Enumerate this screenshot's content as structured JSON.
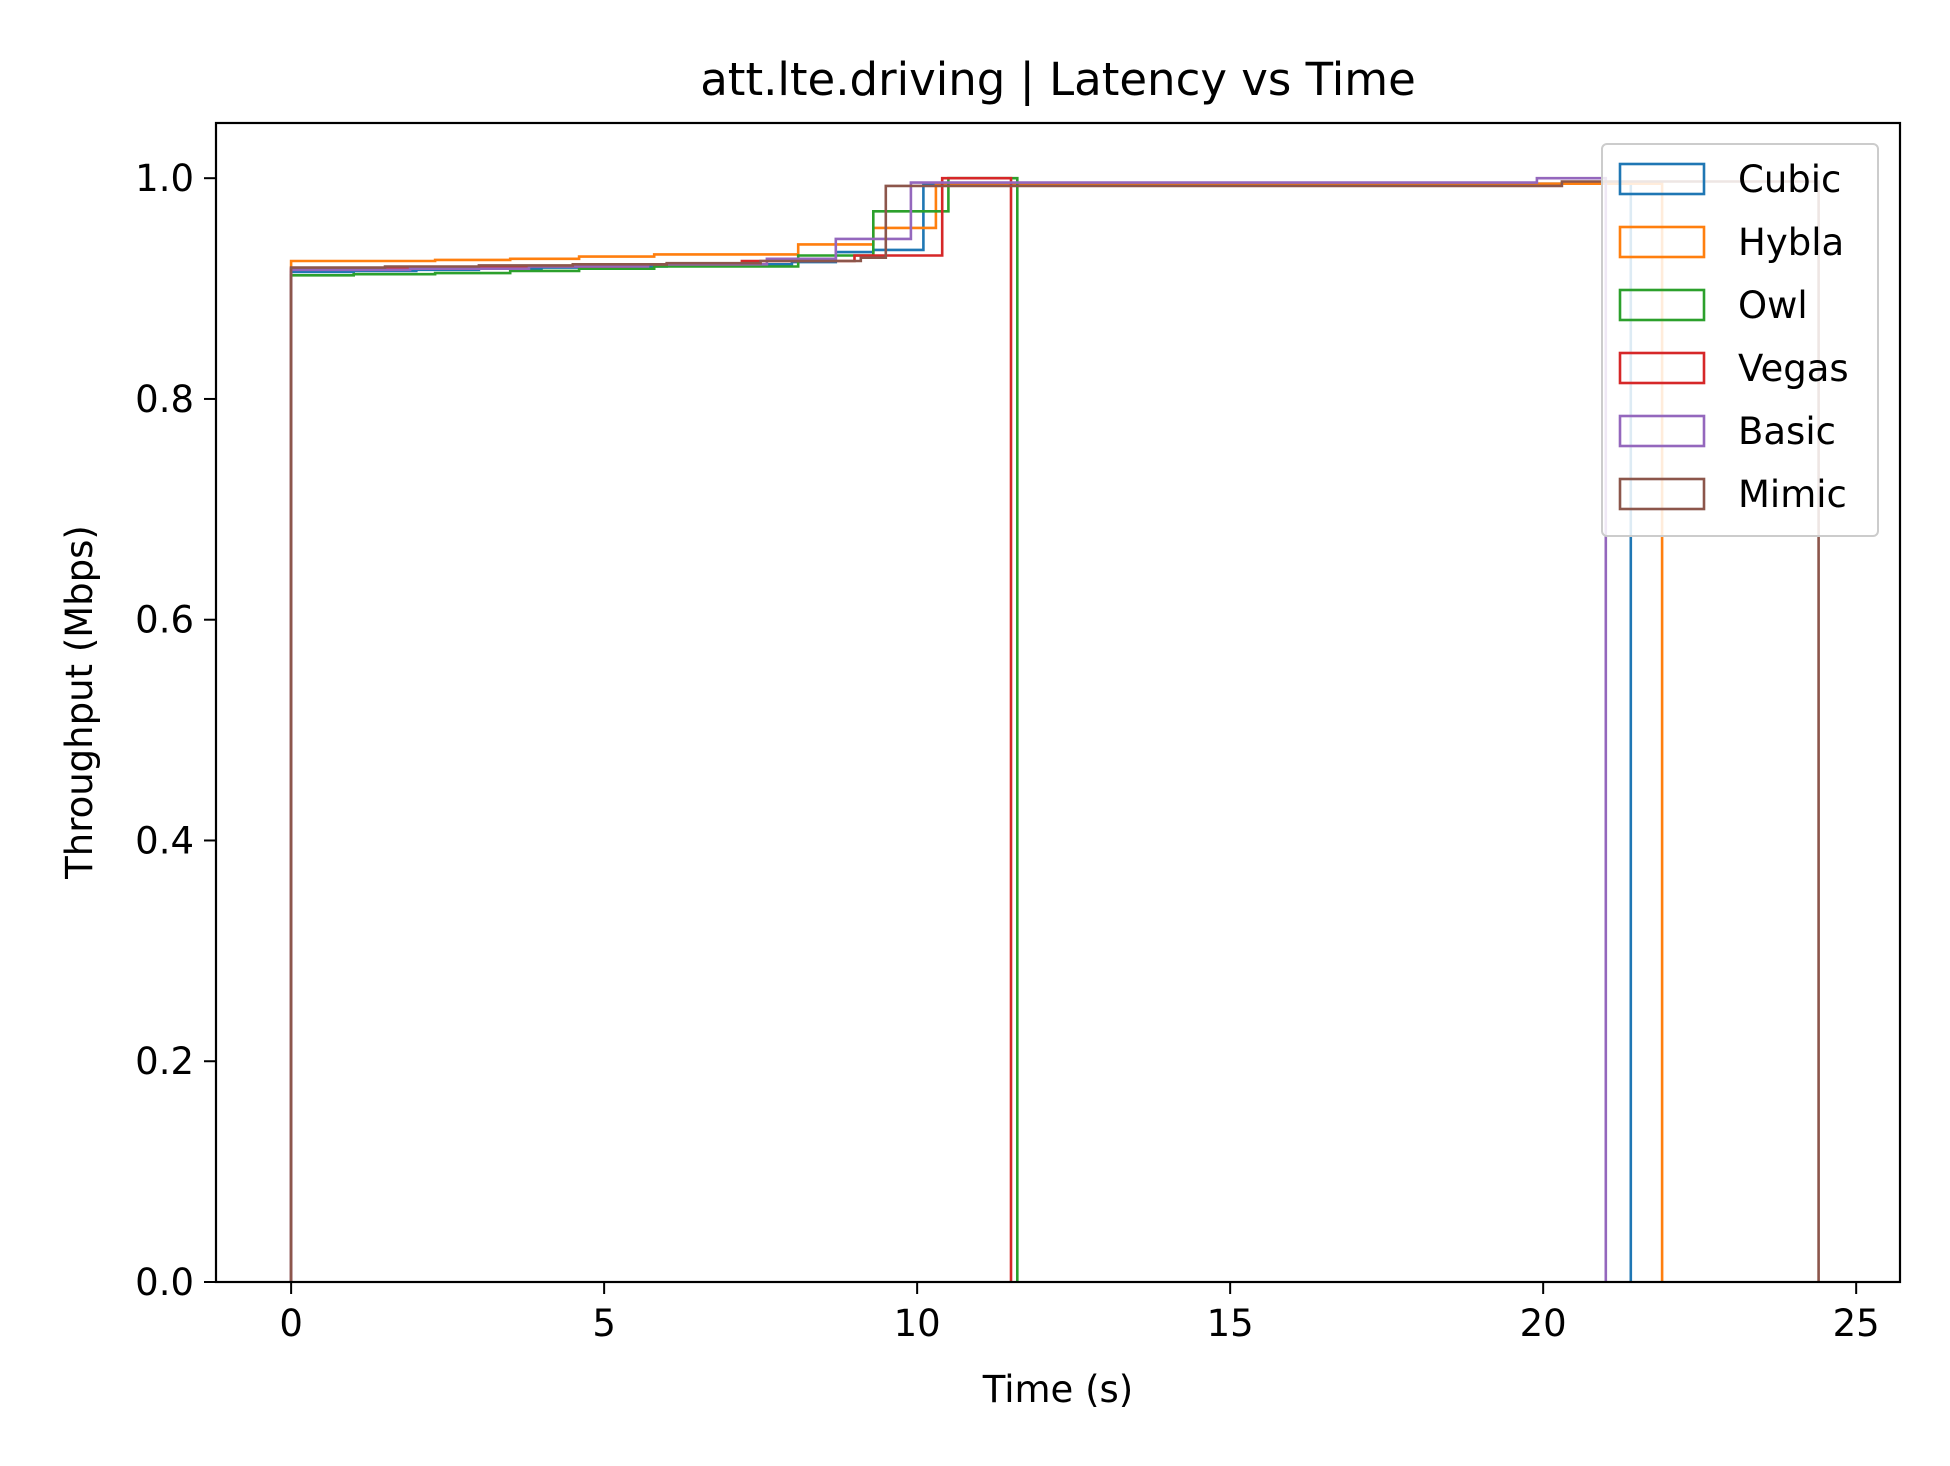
{
  "chart_data": {
    "type": "line",
    "title": "att.lte.driving | Latency vs Time",
    "xlabel": "Time (s)",
    "ylabel": "Throughput (Mbps)",
    "xlim": [
      -1.2,
      25.7
    ],
    "ylim": [
      0.0,
      1.05
    ],
    "xticks": [
      0,
      5,
      10,
      15,
      20,
      25
    ],
    "yticks": [
      0.0,
      0.2,
      0.4,
      0.6,
      0.8,
      1.0
    ],
    "ytick_labels": [
      "0.0",
      "0.2",
      "0.4",
      "0.6",
      "0.8",
      "1.0"
    ],
    "grid": false,
    "legend_position": "top-right",
    "series": [
      {
        "name": "Cubic",
        "color": "#1f77b4",
        "x": [
          0,
          1,
          2,
          3,
          4,
          5,
          6,
          7,
          8,
          8.7,
          9.3,
          10.1,
          21.4
        ],
        "y": [
          0.915,
          0.916,
          0.917,
          0.918,
          0.919,
          0.92,
          0.921,
          0.922,
          0.924,
          0.933,
          0.935,
          0.995,
          0.998
        ]
      },
      {
        "name": "Hybla",
        "color": "#ff7f0e",
        "x": [
          0,
          2.3,
          3.5,
          4.6,
          5.8,
          8.1,
          9.3,
          10.3,
          21.9
        ],
        "y": [
          0.925,
          0.926,
          0.927,
          0.929,
          0.931,
          0.94,
          0.955,
          0.995,
          0.999
        ]
      },
      {
        "name": "Owl",
        "color": "#2ca02c",
        "x": [
          0,
          1,
          2.3,
          3.5,
          4.6,
          5.8,
          8.1,
          9.3,
          10.5,
          11.6
        ],
        "y": [
          0.912,
          0.913,
          0.914,
          0.916,
          0.918,
          0.92,
          0.93,
          0.97,
          1.0,
          1.0
        ]
      },
      {
        "name": "Vegas",
        "color": "#d62728",
        "x": [
          0,
          1.8,
          3.6,
          5.4,
          7.2,
          9,
          10.4,
          11.5
        ],
        "y": [
          0.918,
          0.919,
          0.92,
          0.922,
          0.925,
          0.93,
          1.0,
          1.0
        ]
      },
      {
        "name": "Basic",
        "color": "#9467bd",
        "x": [
          0,
          1.9,
          3.8,
          5.7,
          7.6,
          8.7,
          9.9,
          19.9,
          21.0
        ],
        "y": [
          0.917,
          0.918,
          0.92,
          0.922,
          0.927,
          0.945,
          0.996,
          1.0,
          1.0
        ]
      },
      {
        "name": "Mimic",
        "color": "#8c564b",
        "x": [
          0,
          1.5,
          3,
          4.5,
          6,
          7.5,
          9.1,
          9.5,
          20.3,
          24.4
        ],
        "y": [
          0.919,
          0.92,
          0.921,
          0.922,
          0.923,
          0.925,
          0.928,
          0.993,
          0.997,
          0.997
        ]
      }
    ]
  }
}
